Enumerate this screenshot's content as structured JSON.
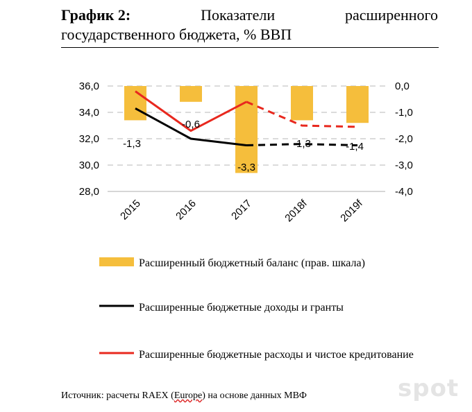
{
  "title": {
    "prefix": "График 2:",
    "line1_word1": "Показатели",
    "line1_word2": "расширенного",
    "line2": "государственного бюджета, % ВВП"
  },
  "chart_data": {
    "type": "bar+line",
    "categories": [
      "2015",
      "2016",
      "2017",
      "2018f",
      "2019f"
    ],
    "left_axis": {
      "ticks": [
        "28,0",
        "30,0",
        "32,0",
        "34,0",
        "36,0"
      ],
      "ylim": [
        28,
        36
      ]
    },
    "right_axis": {
      "ticks": [
        "-4,0",
        "-3,0",
        "-2,0",
        "-1,0",
        "0,0"
      ],
      "ylim": [
        -4,
        0
      ]
    },
    "series": [
      {
        "name": "Расширенный бюджетный баланс (прав. шкала)",
        "type": "bar",
        "axis": "right",
        "color": "#f5be3c",
        "values": [
          -1.3,
          -0.6,
          -3.3,
          -1.3,
          -1.4
        ],
        "labels": [
          "-1,3",
          "-0,6",
          "-3,3",
          "-1,3",
          "-1,4"
        ],
        "forecast_from_index": 3
      },
      {
        "name": "Расширенные бюджетные доходы и гранты",
        "type": "line",
        "axis": "left",
        "color": "#000000",
        "values": [
          34.3,
          32.0,
          31.5,
          31.6,
          31.5
        ],
        "forecast_from_index": 2
      },
      {
        "name": "Расширенные бюджетные расходы и чистое кредитование",
        "type": "line",
        "axis": "left",
        "color": "#e8281e",
        "values": [
          35.6,
          32.6,
          34.8,
          33.0,
          32.9
        ],
        "forecast_from_index": 2
      }
    ],
    "grid": true,
    "legend_position": "bottom"
  },
  "legend": [
    {
      "text": "Расширенный бюджетный баланс (прав. шкала)"
    },
    {
      "text": "Расширенные бюджетные доходы и гранты"
    },
    {
      "text": "Расширенные бюджетные расходы и чистое кредитование"
    }
  ],
  "source": {
    "prefix": "Источник: расчеты RAEX (",
    "underlined": "Europe",
    "suffix": ") на основе данных МВФ"
  },
  "watermark": "spot"
}
